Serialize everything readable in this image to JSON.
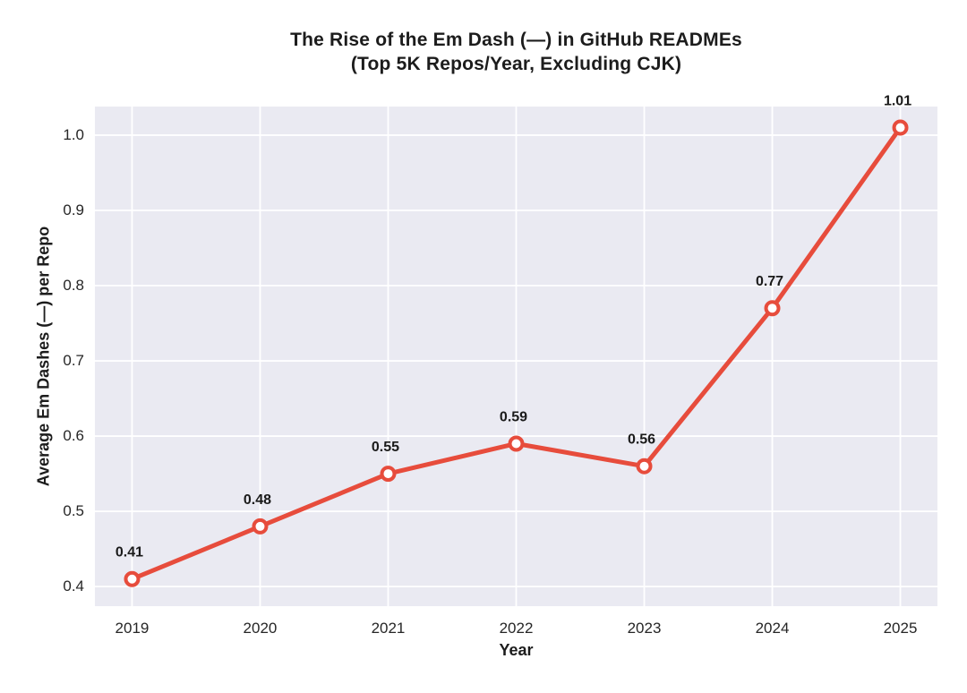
{
  "chart": {
    "title_line1": "The Rise of the Em Dash (—) in GitHub READMEs",
    "title_line2": "(Top 5K Repos/Year, Excluding CJK)",
    "xlabel": "Year",
    "ylabel": "Average Em Dashes (—) per Repo"
  },
  "chart_data": {
    "type": "line",
    "title": "The Rise of the Em Dash (—) in GitHub READMEs",
    "subtitle": "(Top 5K Repos/Year, Excluding CJK)",
    "xlabel": "Year",
    "ylabel": "Average Em Dashes (—) per Repo",
    "x": [
      2019,
      2020,
      2021,
      2022,
      2023,
      2024,
      2025
    ],
    "xticklabels": [
      "2019",
      "2020",
      "2021",
      "2022",
      "2023",
      "2024",
      "2025"
    ],
    "series": [
      {
        "name": "Average Em Dashes (—) per Repo",
        "values": [
          0.41,
          0.48,
          0.55,
          0.59,
          0.56,
          0.77,
          1.01
        ]
      }
    ],
    "point_labels": [
      "0.41",
      "0.48",
      "0.55",
      "0.59",
      "0.56",
      "0.77",
      "1.01"
    ],
    "yticks": [
      0.4,
      0.5,
      0.6,
      0.7,
      0.8,
      0.9,
      1.0
    ],
    "yticklabels": [
      "0.4",
      "0.5",
      "0.6",
      "0.7",
      "0.8",
      "0.9",
      "1.0"
    ],
    "ylim": [
      0.374,
      1.038
    ],
    "xlim": [
      2018.71,
      2025.29
    ],
    "grid": true,
    "legend": "none",
    "colors": {
      "line": "#e74c3c",
      "marker_fill": "#ffffff",
      "marker_edge": "#e74c3c",
      "plot_background": "#eaeaf2",
      "gridline": "#ffffff",
      "text": "#1c1c1c",
      "tick_text": "#262626",
      "point_label_text": "#1a1a1a"
    }
  }
}
